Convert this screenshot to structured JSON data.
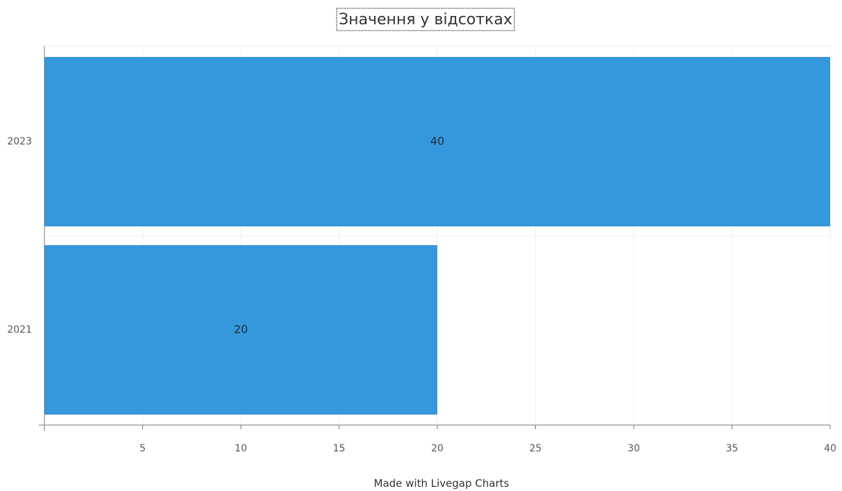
{
  "chart_data": {
    "type": "bar",
    "orientation": "horizontal",
    "title": "Значення у відсотках",
    "categories": [
      "2023",
      "2021"
    ],
    "values": [
      40,
      20
    ],
    "data_labels": [
      "40",
      "20"
    ],
    "xlim": [
      0,
      40
    ],
    "x_ticks": [
      "5",
      "10",
      "15",
      "20",
      "25",
      "30",
      "35",
      "40"
    ],
    "xlabel": "",
    "ylabel": "",
    "grid": true,
    "legend": "none",
    "colors": {
      "bar": "#3598dc"
    }
  },
  "footer": {
    "credit": "Made with Livegap Charts"
  }
}
